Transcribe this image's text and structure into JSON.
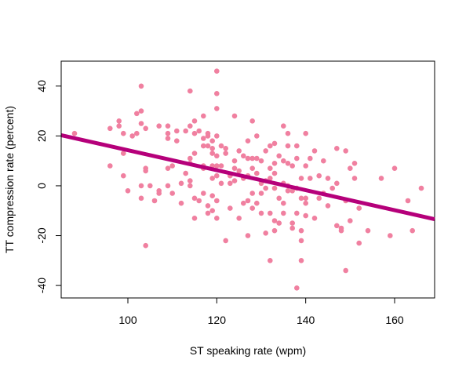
{
  "chart_data": {
    "type": "scatter",
    "title": "",
    "xlabel": "ST speaking rate (wpm)",
    "ylabel": "TT compression rate (percent)",
    "xlim": [
      85,
      169
    ],
    "ylim": [
      -45,
      50
    ],
    "xticks": [
      "100",
      "120",
      "140",
      "160"
    ],
    "yticks": [
      "-40",
      "-20",
      "0",
      "20",
      "40"
    ],
    "grid": false,
    "legend": "none",
    "point_color": "#f080a0",
    "line_color": "#b5007a",
    "trend_line": {
      "x": [
        85,
        169
      ],
      "y": [
        20.3,
        -13.4
      ]
    },
    "points": [
      [
        88,
        21
      ],
      [
        96,
        23
      ],
      [
        96,
        8
      ],
      [
        98,
        24
      ],
      [
        98,
        26
      ],
      [
        99,
        21
      ],
      [
        99,
        13
      ],
      [
        99,
        4
      ],
      [
        100,
        -2
      ],
      [
        101,
        20
      ],
      [
        102,
        21
      ],
      [
        102,
        29
      ],
      [
        103,
        30
      ],
      [
        103,
        40
      ],
      [
        103,
        25
      ],
      [
        103,
        0
      ],
      [
        103,
        -5
      ],
      [
        104,
        23
      ],
      [
        104,
        7
      ],
      [
        104,
        6
      ],
      [
        104,
        -24
      ],
      [
        105,
        0
      ],
      [
        106,
        -6
      ],
      [
        107,
        24
      ],
      [
        107,
        -2
      ],
      [
        107,
        -3
      ],
      [
        109,
        24
      ],
      [
        109,
        21
      ],
      [
        109,
        19
      ],
      [
        109,
        7
      ],
      [
        109,
        0
      ],
      [
        110,
        8
      ],
      [
        110,
        -3
      ],
      [
        111,
        22
      ],
      [
        111,
        18
      ],
      [
        112,
        1
      ],
      [
        112,
        -7
      ],
      [
        113,
        22
      ],
      [
        113,
        5
      ],
      [
        114,
        38
      ],
      [
        114,
        24
      ],
      [
        114,
        11
      ],
      [
        114,
        9
      ],
      [
        114,
        2
      ],
      [
        114,
        0
      ],
      [
        115,
        26
      ],
      [
        115,
        21
      ],
      [
        115,
        13
      ],
      [
        115,
        -5
      ],
      [
        115,
        -13
      ],
      [
        116,
        22
      ],
      [
        116,
        -6
      ],
      [
        117,
        28
      ],
      [
        117,
        19
      ],
      [
        117,
        16
      ],
      [
        117,
        8
      ],
      [
        117,
        7
      ],
      [
        117,
        -3
      ],
      [
        118,
        21
      ],
      [
        118,
        20
      ],
      [
        118,
        16
      ],
      [
        118,
        -8
      ],
      [
        118,
        -11
      ],
      [
        119,
        18
      ],
      [
        119,
        15
      ],
      [
        119,
        13
      ],
      [
        119,
        3
      ],
      [
        119,
        8
      ],
      [
        119,
        -4
      ],
      [
        119,
        -10
      ],
      [
        120,
        46
      ],
      [
        120,
        37
      ],
      [
        120,
        31
      ],
      [
        120,
        20
      ],
      [
        120,
        12
      ],
      [
        120,
        8
      ],
      [
        120,
        4
      ],
      [
        120,
        -6
      ],
      [
        120,
        -13
      ],
      [
        121,
        16
      ],
      [
        121,
        8
      ],
      [
        121,
        1
      ],
      [
        122,
        15
      ],
      [
        122,
        13
      ],
      [
        122,
        -22
      ],
      [
        123,
        4
      ],
      [
        123,
        1
      ],
      [
        123,
        -9
      ],
      [
        124,
        28
      ],
      [
        124,
        10
      ],
      [
        124,
        7
      ],
      [
        124,
        2
      ],
      [
        125,
        14
      ],
      [
        125,
        6
      ],
      [
        125,
        -13
      ],
      [
        126,
        12
      ],
      [
        126,
        3
      ],
      [
        126,
        -7
      ],
      [
        127,
        18
      ],
      [
        127,
        11
      ],
      [
        127,
        4
      ],
      [
        127,
        -6
      ],
      [
        127,
        -20
      ],
      [
        128,
        26
      ],
      [
        128,
        11
      ],
      [
        128,
        7
      ],
      [
        128,
        -3
      ],
      [
        128,
        -9
      ],
      [
        129,
        20
      ],
      [
        129,
        11
      ],
      [
        129,
        5
      ],
      [
        129,
        -7
      ],
      [
        130,
        10
      ],
      [
        130,
        1
      ],
      [
        130,
        -3
      ],
      [
        130,
        -11
      ],
      [
        131,
        14
      ],
      [
        131,
        2
      ],
      [
        131,
        -1
      ],
      [
        131,
        -19
      ],
      [
        132,
        16
      ],
      [
        132,
        7
      ],
      [
        132,
        3
      ],
      [
        132,
        -11
      ],
      [
        132,
        -30
      ],
      [
        133,
        17
      ],
      [
        133,
        9
      ],
      [
        133,
        5
      ],
      [
        133,
        -1
      ],
      [
        133,
        -14
      ],
      [
        133,
        -18
      ],
      [
        134,
        12
      ],
      [
        134,
        -5
      ],
      [
        134,
        -15
      ],
      [
        135,
        24
      ],
      [
        135,
        10
      ],
      [
        135,
        1
      ],
      [
        135,
        -7
      ],
      [
        135,
        -11
      ],
      [
        136,
        21
      ],
      [
        136,
        16
      ],
      [
        136,
        9
      ],
      [
        136,
        0
      ],
      [
        136,
        -2
      ],
      [
        137,
        8
      ],
      [
        137,
        -15
      ],
      [
        137,
        -17
      ],
      [
        137,
        -2
      ],
      [
        138,
        16
      ],
      [
        138,
        11
      ],
      [
        138,
        -1
      ],
      [
        138,
        -41
      ],
      [
        138,
        -11
      ],
      [
        139,
        3
      ],
      [
        139,
        -5
      ],
      [
        139,
        -22
      ],
      [
        139,
        -30
      ],
      [
        139,
        -18
      ],
      [
        140,
        21
      ],
      [
        140,
        8
      ],
      [
        140,
        -5
      ],
      [
        140,
        -7
      ],
      [
        140,
        -12
      ],
      [
        141,
        11
      ],
      [
        141,
        3
      ],
      [
        142,
        14
      ],
      [
        142,
        -13
      ],
      [
        143,
        4
      ],
      [
        143,
        -5
      ],
      [
        144,
        10
      ],
      [
        144,
        -3
      ],
      [
        145,
        3
      ],
      [
        145,
        -8
      ],
      [
        146,
        -1
      ],
      [
        147,
        15
      ],
      [
        147,
        1
      ],
      [
        147,
        -16
      ],
      [
        148,
        -17
      ],
      [
        148,
        -18
      ],
      [
        149,
        14
      ],
      [
        149,
        -6
      ],
      [
        149,
        -34
      ],
      [
        150,
        7
      ],
      [
        150,
        -14
      ],
      [
        151,
        9
      ],
      [
        151,
        3
      ],
      [
        152,
        -9
      ],
      [
        152,
        -23
      ],
      [
        154,
        -18
      ],
      [
        157,
        3
      ],
      [
        159,
        -20
      ],
      [
        160,
        7
      ],
      [
        163,
        -6
      ],
      [
        164,
        -18
      ],
      [
        166,
        -1
      ]
    ]
  }
}
